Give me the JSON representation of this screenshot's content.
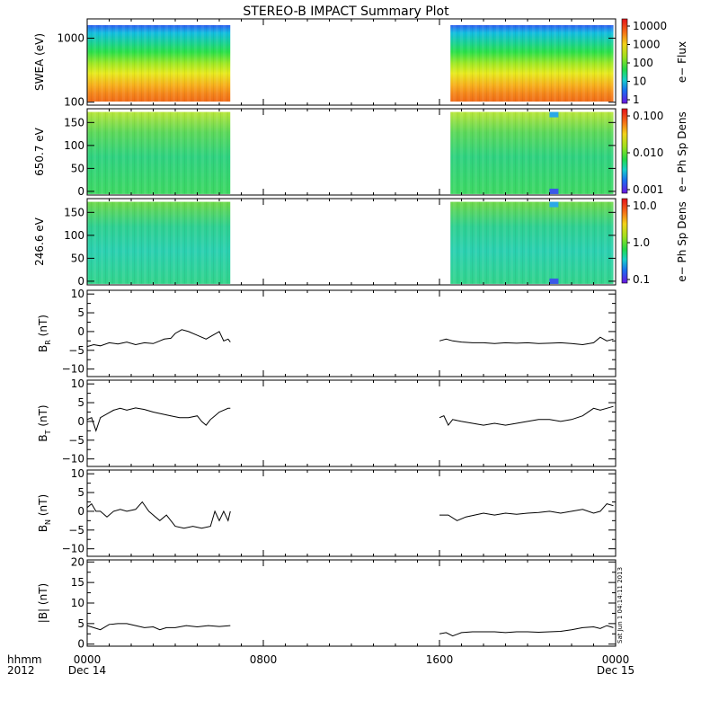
{
  "chart_data": {
    "type": "line",
    "title": "STEREO-B IMPACT Summary Plot",
    "x_axis": {
      "tick_hours": [
        0,
        8,
        16,
        24
      ],
      "tick_labels": [
        "0000",
        "0800",
        "1600",
        "0000"
      ],
      "date_labels": [
        "Dec 14",
        "Dec 15"
      ],
      "row_labels": [
        "hhmm",
        "2012"
      ],
      "data_gap_hours": [
        6.5,
        16.5
      ]
    },
    "spectrograms": [
      {
        "ylabel": "SWEA (eV)",
        "scale": "log",
        "ylim": [
          90,
          2000
        ],
        "ytick_values": [
          100,
          1000
        ],
        "ytick_labels": [
          "100",
          "1000"
        ],
        "colorbar_label": "e− Flux",
        "colorbar_tick_labels": [
          "10000",
          "1000",
          "100",
          "10",
          "1"
        ]
      },
      {
        "ylabel": "650.7 eV",
        "scale": "linear",
        "ylim": [
          -8,
          180
        ],
        "ytick_values": [
          0,
          50,
          100,
          150
        ],
        "ytick_labels": [
          "0",
          "50",
          "100",
          "150"
        ],
        "colorbar_label": "e− Ph Sp Dens",
        "colorbar_tick_labels": [
          "0.100",
          "0.010",
          "0.001"
        ]
      },
      {
        "ylabel": "246.6 eV",
        "scale": "linear",
        "ylim": [
          -8,
          180
        ],
        "ytick_values": [
          0,
          50,
          100,
          150
        ],
        "ytick_labels": [
          "0",
          "50",
          "100",
          "150"
        ],
        "colorbar_label": "e− Ph Sp Dens",
        "colorbar_tick_labels": [
          "10.0",
          "1.0",
          "0.1"
        ]
      }
    ],
    "series": [
      {
        "ylabel": "B",
        "ylabel_sub": "R",
        "ylabel_unit": "(nT)",
        "ylim": [
          -12,
          11
        ],
        "ytick_values": [
          10,
          5,
          0,
          -5,
          -10
        ],
        "ytick_labels": [
          "10",
          "5",
          "0",
          "−5",
          "−10"
        ],
        "x": [
          0.0,
          0.3,
          0.6,
          1.0,
          1.4,
          1.8,
          2.2,
          2.6,
          3.0,
          3.3,
          3.5,
          3.8,
          4.0,
          4.3,
          4.6,
          5.0,
          5.4,
          5.7,
          6.0,
          6.2,
          6.4,
          6.5,
          16.0,
          16.3,
          16.6,
          17.0,
          17.5,
          18.0,
          18.5,
          19.0,
          19.5,
          20.0,
          20.5,
          21.0,
          21.5,
          22.0,
          22.5,
          23.0,
          23.3,
          23.6,
          23.9
        ],
        "y": [
          -4.0,
          -3.5,
          -3.8,
          -3.0,
          -3.3,
          -2.8,
          -3.5,
          -3.0,
          -3.2,
          -2.5,
          -2.0,
          -1.8,
          -0.5,
          0.5,
          0.0,
          -1.0,
          -2.0,
          -1.0,
          0.0,
          -2.5,
          -2.0,
          -2.8,
          -2.5,
          -2.0,
          -2.5,
          -2.8,
          -3.0,
          -3.0,
          -3.2,
          -3.0,
          -3.1,
          -3.0,
          -3.2,
          -3.1,
          -3.0,
          -3.2,
          -3.5,
          -3.0,
          -1.5,
          -2.5,
          -2.0
        ]
      },
      {
        "ylabel": "B",
        "ylabel_sub": "T",
        "ylabel_unit": "(nT)",
        "ylim": [
          -12,
          11
        ],
        "ytick_values": [
          10,
          5,
          0,
          -5,
          -10
        ],
        "ytick_labels": [
          "10",
          "5",
          "0",
          "−5",
          "−10"
        ],
        "x": [
          0.0,
          0.2,
          0.4,
          0.6,
          0.9,
          1.2,
          1.5,
          1.8,
          2.2,
          2.6,
          3.0,
          3.4,
          3.8,
          4.2,
          4.6,
          5.0,
          5.2,
          5.4,
          5.6,
          5.8,
          6.0,
          6.2,
          6.4,
          6.5,
          16.0,
          16.2,
          16.4,
          16.6,
          17.0,
          17.5,
          18.0,
          18.5,
          19.0,
          19.5,
          20.0,
          20.5,
          21.0,
          21.5,
          22.0,
          22.5,
          23.0,
          23.3,
          23.6,
          23.9
        ],
        "y": [
          0.5,
          1.0,
          -2.5,
          1.0,
          2.0,
          3.0,
          3.5,
          3.0,
          3.6,
          3.2,
          2.5,
          2.0,
          1.5,
          1.0,
          1.0,
          1.5,
          0.0,
          -1.0,
          0.5,
          1.5,
          2.5,
          3.0,
          3.5,
          3.5,
          1.0,
          1.5,
          -1.0,
          0.5,
          0.0,
          -0.5,
          -1.0,
          -0.5,
          -1.0,
          -0.5,
          0.0,
          0.5,
          0.5,
          0.0,
          0.5,
          1.5,
          3.5,
          3.0,
          3.5,
          4.0
        ]
      },
      {
        "ylabel": "B",
        "ylabel_sub": "N",
        "ylabel_unit": "(nT)",
        "ylim": [
          -12,
          11
        ],
        "ytick_values": [
          10,
          5,
          0,
          -5,
          -10
        ],
        "ytick_labels": [
          "10",
          "5",
          "0",
          "−5",
          "−10"
        ],
        "x": [
          0.0,
          0.2,
          0.4,
          0.6,
          0.9,
          1.2,
          1.5,
          1.8,
          2.2,
          2.5,
          2.8,
          3.0,
          3.3,
          3.6,
          4.0,
          4.4,
          4.8,
          5.2,
          5.6,
          5.8,
          6.0,
          6.2,
          6.4,
          6.5,
          16.0,
          16.4,
          16.8,
          17.2,
          17.6,
          18.0,
          18.5,
          19.0,
          19.5,
          20.0,
          20.5,
          21.0,
          21.5,
          22.0,
          22.5,
          23.0,
          23.3,
          23.6,
          23.9
        ],
        "y": [
          1.0,
          2.0,
          0.0,
          0.0,
          -1.5,
          0.0,
          0.5,
          0.0,
          0.5,
          2.5,
          0.0,
          -1.0,
          -2.5,
          -1.0,
          -4.0,
          -4.5,
          -4.0,
          -4.5,
          -4.0,
          0.0,
          -2.5,
          0.0,
          -2.5,
          0.0,
          -1.0,
          -1.0,
          -2.5,
          -1.5,
          -1.0,
          -0.5,
          -1.0,
          -0.5,
          -0.8,
          -0.5,
          -0.3,
          0.0,
          -0.5,
          0.0,
          0.5,
          -0.5,
          0.0,
          2.0,
          1.5
        ]
      },
      {
        "ylabel": "|B|",
        "ylabel_sub": "",
        "ylabel_unit": "(nT)",
        "ylim": [
          -0.5,
          20.5
        ],
        "ytick_values": [
          20,
          15,
          10,
          5,
          0
        ],
        "ytick_labels": [
          "20",
          "15",
          "10",
          "5",
          "0"
        ],
        "x": [
          0.0,
          0.3,
          0.6,
          1.0,
          1.4,
          1.8,
          2.2,
          2.6,
          3.0,
          3.3,
          3.6,
          4.0,
          4.5,
          5.0,
          5.5,
          6.0,
          6.5,
          16.0,
          16.3,
          16.6,
          17.0,
          17.5,
          18.0,
          18.5,
          19.0,
          19.5,
          20.0,
          20.5,
          21.0,
          21.5,
          22.0,
          22.5,
          23.0,
          23.3,
          23.6,
          23.9
        ],
        "y": [
          4.5,
          4.0,
          3.5,
          4.8,
          5.0,
          5.0,
          4.5,
          4.0,
          4.2,
          3.5,
          4.0,
          4.0,
          4.5,
          4.2,
          4.5,
          4.3,
          4.5,
          2.5,
          2.8,
          2.0,
          2.8,
          3.0,
          3.0,
          3.0,
          2.8,
          3.0,
          3.0,
          2.9,
          3.0,
          3.1,
          3.5,
          4.0,
          4.2,
          3.8,
          4.5,
          4.0
        ]
      }
    ],
    "timestamp": "Sat Jun 1 04:14:11 2013"
  }
}
